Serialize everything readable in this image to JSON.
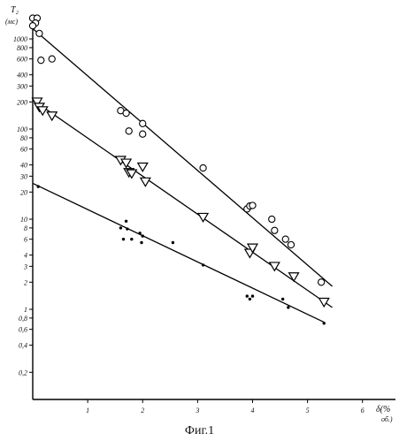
{
  "caption": "Фиг.1",
  "chart_data": {
    "type": "scatter",
    "title": "",
    "ylabel": "T₂",
    "yunit": "(мс)",
    "xlabel": "δ(%",
    "xunit": "об.)",
    "yscale": "log",
    "xlim": [
      0,
      6.6
    ],
    "ylim": [
      0.1,
      1800
    ],
    "x_ticks": [
      1,
      2,
      3,
      4,
      5,
      6
    ],
    "x_tick_labels": [
      "1",
      "2",
      "3",
      "4",
      "5",
      "6"
    ],
    "y_ticks": [
      1000,
      800,
      600,
      400,
      300,
      200,
      100,
      80,
      60,
      40,
      30,
      20,
      10,
      8,
      6,
      4,
      3,
      2,
      1,
      0.8,
      0.6,
      0.4,
      0.2
    ],
    "y_tick_labels": [
      "1000",
      "800",
      "600",
      "400",
      "300",
      "200",
      "100",
      "80",
      "60",
      "40",
      "30",
      "20",
      "10",
      "8",
      "6",
      "4",
      "3",
      "2",
      "1",
      "0,8",
      "0,6",
      "0,4",
      "0,2"
    ],
    "grid": false,
    "legend": "none",
    "series": [
      {
        "marker": "circle",
        "points": [
          [
            0.0,
            1700
          ],
          [
            0.08,
            1700
          ],
          [
            0.05,
            1500
          ],
          [
            0.0,
            1400
          ],
          [
            0.12,
            1150
          ],
          [
            0.15,
            580
          ],
          [
            0.35,
            600
          ],
          [
            1.6,
            160
          ],
          [
            1.7,
            150
          ],
          [
            1.75,
            95
          ],
          [
            2.0,
            115
          ],
          [
            2.0,
            88
          ],
          [
            3.1,
            37
          ],
          [
            3.9,
            13
          ],
          [
            3.95,
            14
          ],
          [
            4.0,
            14.2
          ],
          [
            4.35,
            10
          ],
          [
            4.4,
            7.5
          ],
          [
            4.6,
            6
          ],
          [
            4.7,
            5.2
          ],
          [
            5.25,
            2
          ]
        ],
        "fit": [
          [
            0.0,
            1300
          ],
          [
            5.45,
            1.8
          ]
        ]
      },
      {
        "marker": "triangle-down",
        "points": [
          [
            0.08,
            200
          ],
          [
            0.12,
            175
          ],
          [
            0.18,
            160
          ],
          [
            0.35,
            140
          ],
          [
            1.6,
            45
          ],
          [
            1.7,
            42
          ],
          [
            1.75,
            33
          ],
          [
            1.8,
            32
          ],
          [
            2.0,
            38
          ],
          [
            2.05,
            26
          ],
          [
            3.1,
            10.5
          ],
          [
            3.95,
            4.2
          ],
          [
            4.0,
            4.8
          ],
          [
            4.4,
            3
          ],
          [
            4.75,
            2.3
          ],
          [
            5.3,
            1.2
          ]
        ],
        "fit": [
          [
            0.0,
            210
          ],
          [
            5.45,
            1.05
          ]
        ]
      },
      {
        "marker": "dot",
        "points": [
          [
            0.1,
            23
          ],
          [
            1.6,
            8
          ],
          [
            1.65,
            6
          ],
          [
            1.7,
            9.5
          ],
          [
            1.72,
            7.8
          ],
          [
            1.8,
            6
          ],
          [
            1.95,
            7
          ],
          [
            2.0,
            6.5
          ],
          [
            1.98,
            5.5
          ],
          [
            2.55,
            5.5
          ],
          [
            3.1,
            3.1
          ],
          [
            3.9,
            1.4
          ],
          [
            3.95,
            1.3
          ],
          [
            4.0,
            1.4
          ],
          [
            4.55,
            1.3
          ],
          [
            4.65,
            1.05
          ],
          [
            5.3,
            0.7
          ]
        ],
        "fit": [
          [
            0.0,
            25
          ],
          [
            5.3,
            0.72
          ]
        ]
      }
    ]
  }
}
